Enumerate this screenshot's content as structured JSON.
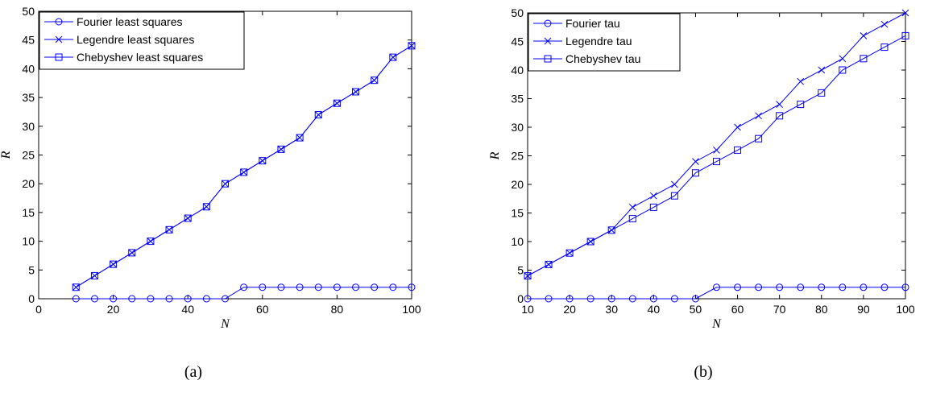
{
  "chart_data": [
    {
      "type": "line",
      "caption": "(a)",
      "xlabel": "N",
      "ylabel": "R",
      "xlim": [
        0,
        100
      ],
      "ylim": [
        0,
        50
      ],
      "xticks": [
        0,
        20,
        40,
        60,
        80,
        100
      ],
      "yticks": [
        0,
        5,
        10,
        15,
        20,
        25,
        30,
        35,
        40,
        45,
        50
      ],
      "grid": false,
      "legend_position": "top-left",
      "line_color": "#0000ff",
      "x": [
        10,
        15,
        20,
        25,
        30,
        35,
        40,
        45,
        50,
        55,
        60,
        65,
        70,
        75,
        80,
        85,
        90,
        95,
        100
      ],
      "series": [
        {
          "name": "Fourier least squares",
          "marker": "circle",
          "values": [
            0,
            0,
            0,
            0,
            0,
            0,
            0,
            0,
            0,
            2,
            2,
            2,
            2,
            2,
            2,
            2,
            2,
            2,
            2
          ]
        },
        {
          "name": "Legendre least squares",
          "marker": "cross",
          "values": [
            2,
            4,
            6,
            8,
            10,
            12,
            14,
            16,
            20,
            22,
            24,
            26,
            28,
            32,
            34,
            36,
            38,
            42,
            44
          ]
        },
        {
          "name": "Chebyshev least squares",
          "marker": "square",
          "values": [
            2,
            4,
            6,
            8,
            10,
            12,
            14,
            16,
            20,
            22,
            24,
            26,
            28,
            32,
            34,
            36,
            38,
            42,
            44
          ]
        }
      ]
    },
    {
      "type": "line",
      "caption": "(b)",
      "xlabel": "N",
      "ylabel": "R",
      "xlim": [
        10,
        100
      ],
      "ylim": [
        0,
        50
      ],
      "xticks": [
        10,
        20,
        30,
        40,
        50,
        60,
        70,
        80,
        90,
        100
      ],
      "yticks": [
        0,
        5,
        10,
        15,
        20,
        25,
        30,
        35,
        40,
        45,
        50
      ],
      "grid": false,
      "legend_position": "top-left",
      "line_color": "#0000ff",
      "x": [
        10,
        15,
        20,
        25,
        30,
        35,
        40,
        45,
        50,
        55,
        60,
        65,
        70,
        75,
        80,
        85,
        90,
        95,
        100
      ],
      "series": [
        {
          "name": "Fourier tau",
          "marker": "circle",
          "values": [
            0,
            0,
            0,
            0,
            0,
            0,
            0,
            0,
            0,
            2,
            2,
            2,
            2,
            2,
            2,
            2,
            2,
            2,
            2
          ]
        },
        {
          "name": "Legendre tau",
          "marker": "cross",
          "values": [
            4,
            6,
            8,
            10,
            12,
            16,
            18,
            20,
            24,
            26,
            30,
            32,
            34,
            38,
            40,
            42,
            46,
            48,
            50
          ]
        },
        {
          "name": "Chebyshev tau",
          "marker": "square",
          "values": [
            4,
            6,
            8,
            10,
            12,
            14,
            16,
            18,
            22,
            24,
            26,
            28,
            32,
            34,
            36,
            40,
            42,
            44,
            46
          ]
        }
      ]
    }
  ]
}
